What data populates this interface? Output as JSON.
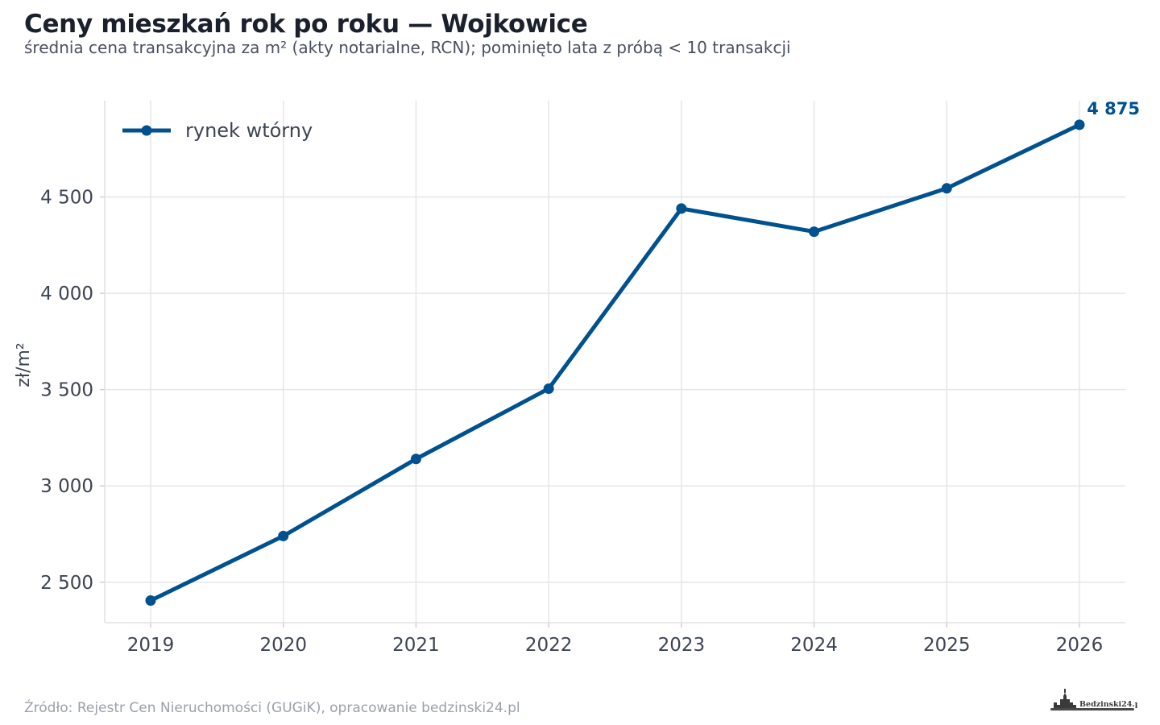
{
  "title": "Ceny mieszkań rok po roku — Wojkowice",
  "subtitle": "średnia cena transakcyjna za m² (akty notarialne, RCN); pominięto lata z próbą < 10 transakcji",
  "source": "Źródło: Rejestr Cen Nieruchomości (GUGiK), opracowanie bedzinski24.pl",
  "logo_text": "Bedzinski24.pl",
  "colors": {
    "series": "#00518f",
    "grid": "#e6e6e6",
    "text": "#3d4453"
  },
  "chart_data": {
    "type": "line",
    "x": [
      "2019",
      "2020",
      "2021",
      "2022",
      "2023",
      "2024",
      "2025",
      "2026"
    ],
    "series": [
      {
        "name": "rynek wtórny",
        "values": [
          2405,
          2740,
          3140,
          3505,
          4440,
          4320,
          4545,
          4875
        ]
      }
    ],
    "ylabel": "zł/m²",
    "yticks": [
      2500,
      3000,
      3500,
      4000,
      4500
    ],
    "ytick_labels": [
      "2 500",
      "3 000",
      "3 500",
      "4 000",
      "4 500"
    ],
    "ylim": [
      2290,
      5000
    ],
    "end_label": "4 875",
    "legend_position": "top-left",
    "grid": true
  }
}
